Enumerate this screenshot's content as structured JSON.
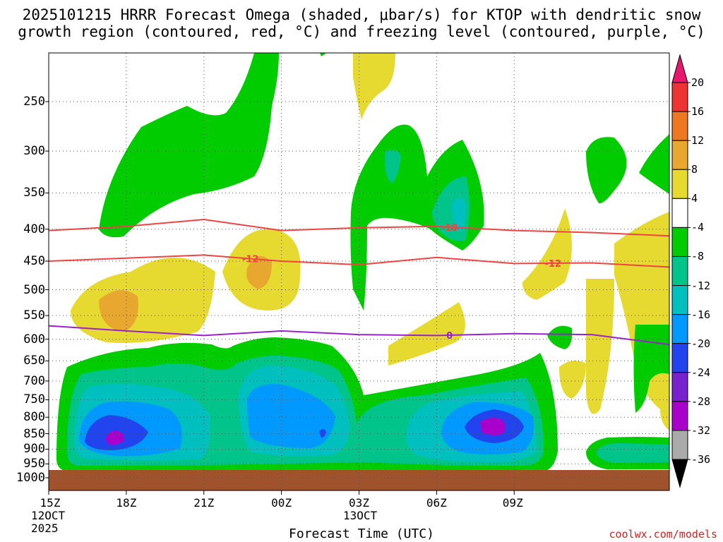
{
  "chart_data": {
    "type": "heatmap",
    "title_line1": "2025101215 HRRR Forecast Omega (shaded, μbar/s) for KTOP with dendritic snow",
    "title_line2": "growth region (contoured, red, °C) and freezing level (contoured, purple, °C)",
    "xlabel": "Forecast Time (UTC)",
    "credit": "coolwx.com/models",
    "x_ticks": [
      "15Z",
      "18Z",
      "21Z",
      "00Z",
      "03Z",
      "06Z",
      "09Z"
    ],
    "x_sublabels": {
      "start_date": "12OCT",
      "start_year": "2025",
      "mid_date": "13OCT"
    },
    "y_ticks": [
      "250",
      "300",
      "350",
      "400",
      "450",
      "500",
      "550",
      "600",
      "650",
      "700",
      "750",
      "800",
      "850",
      "900",
      "950",
      "1000"
    ],
    "colorbar": {
      "labels": [
        "20",
        "16",
        "12",
        "8",
        "4",
        "-4",
        "-8",
        "-12",
        "-16",
        "-20",
        "-24",
        "-28",
        "-32",
        "-36"
      ],
      "colors": [
        "#e8186e",
        "#ee3333",
        "#ee7722",
        "#e8a830",
        "#e6d930",
        "#ffffff",
        "#00cc00",
        "#00c48a",
        "#00bfbf",
        "#0099ff",
        "#2244ee",
        "#7722cc",
        "#aa00cc",
        "#aaaaaa",
        "#000000"
      ]
    },
    "contour_labels": {
      "dgz_upper": "-18",
      "dgz_lower_a": "-12",
      "dgz_lower_b": "-12",
      "freezing": "0"
    },
    "series": [
      {
        "name": "-18C (dendritic upper)",
        "hours": [
          0,
          3,
          6,
          9,
          12,
          15,
          18,
          21,
          24
        ],
        "pressure_hPa": [
          402,
          396,
          386,
          402,
          398,
          396,
          402,
          405,
          410
        ]
      },
      {
        "name": "-12C (dendritic lower)",
        "hours": [
          0,
          3,
          6,
          9,
          12,
          15,
          18,
          21,
          24
        ],
        "pressure_hPa": [
          450,
          445,
          440,
          450,
          456,
          444,
          454,
          453,
          460
        ]
      },
      {
        "name": "0C freezing level",
        "hours": [
          0,
          3,
          6,
          9,
          12,
          15,
          18,
          21,
          24
        ],
        "pressure_hPa": [
          571,
          582,
          592,
          582,
          590,
          592,
          588,
          590,
          612
        ]
      }
    ]
  }
}
